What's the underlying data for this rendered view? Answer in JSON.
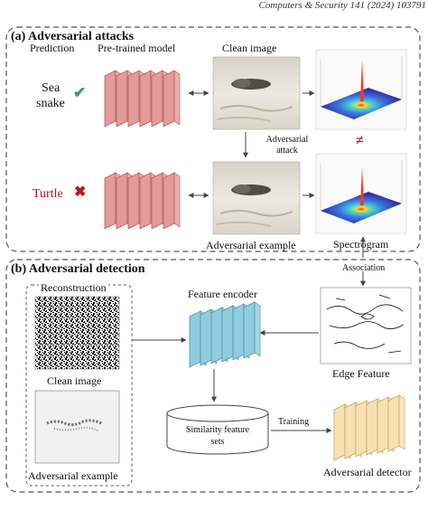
{
  "header": {
    "citation": "Computers & Security 141 (2024) 103791"
  },
  "panel_a": {
    "title": "(a) Adversarial attacks",
    "prediction_label": "Prediction",
    "model_label": "Pre-trained model",
    "clean_label": "Clean image",
    "attack_label_line1": "Adversarial",
    "attack_label_line2": "attack",
    "adv_example_label": "Adversarial example",
    "spectrogram_label": "Spectrogram",
    "pred_clean_line1": "Sea",
    "pred_clean_line2": "snake",
    "pred_adv": "Turtle",
    "not_equal": "≠"
  },
  "panel_b": {
    "title": "(b) Adversarial detection",
    "association_label": "Association",
    "reconstruction_label": "Reconstruction",
    "clean_image_label": "Clean image",
    "adv_example_label": "Adversarial example",
    "feature_encoder_label": "Feature encoder",
    "edge_feature_label": "Edge Feature",
    "similarity_line1": "Similarity feature",
    "similarity_line2": "sets",
    "training_label": "Training",
    "detector_label": "Adversarial detector"
  },
  "colors": {
    "model_fill": "#e39a98",
    "model_stroke": "#b85e5c",
    "encoder_fill": "#8fcdde",
    "encoder_stroke": "#4f93a8",
    "detector_fill": "#f7e0b2",
    "detector_stroke": "#c8a864",
    "check": "#3aa14b",
    "cross": "#c0121a"
  }
}
